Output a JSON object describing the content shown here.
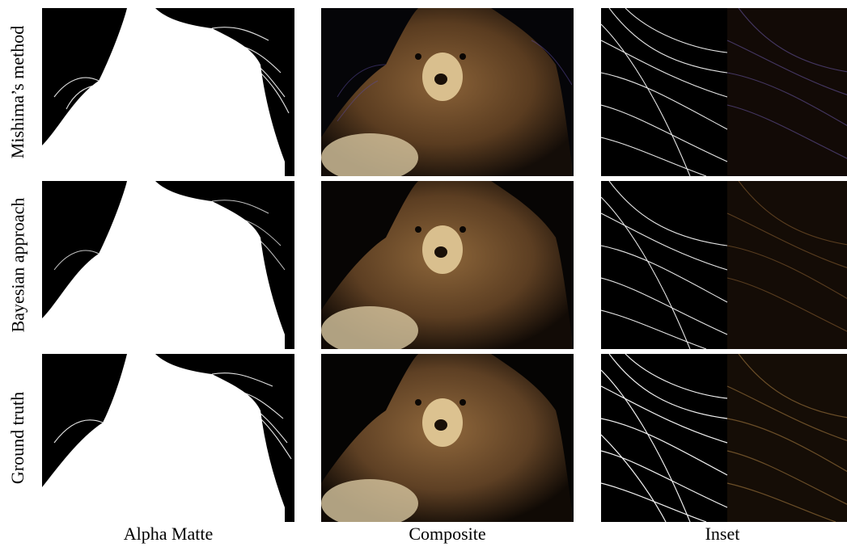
{
  "figure": {
    "row_labels": [
      "Mishima’s method",
      "Bayesian approach",
      "Ground truth"
    ],
    "column_labels": [
      "Alpha Matte",
      "Composite",
      "Inset"
    ]
  },
  "palette": {
    "background": "#000000",
    "matte": "#ffffff",
    "fur_dark": "#3a2614",
    "fur_mid": "#6b4a2a",
    "fur_light": "#c9ad7a",
    "purple_tint": "#4a3a7a"
  }
}
